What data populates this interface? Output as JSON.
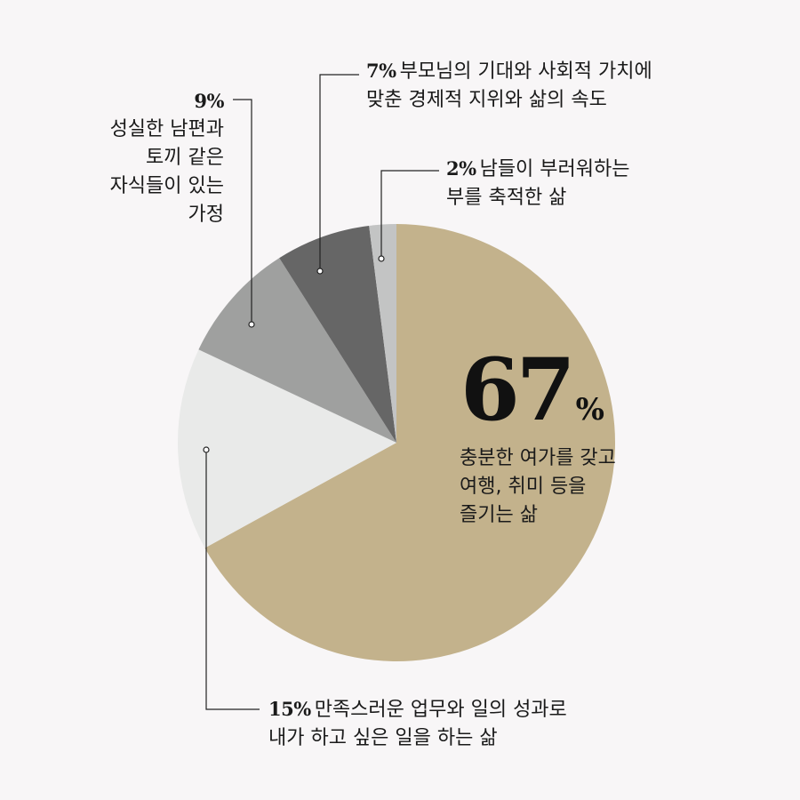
{
  "chart_data": {
    "type": "pie",
    "categories": [
      "충분한 여가를 갖고 여행, 취미 등을 즐기는 삶",
      "만족스러운 업무와 일의 성과로 내가 하고 싶은 일을 하는 삶",
      "성실한 남편과 토끼 같은 자식들이 있는 가정",
      "부모님의 기대와 사회적 가치에 맞춘 경제적 지위와 삶의 속도",
      "남들이 부러워하는 부를 축적한 삶"
    ],
    "values": [
      67,
      15,
      9,
      7,
      2
    ],
    "colors": [
      "#c3b28c",
      "#e9eae9",
      "#9fa09f",
      "#666666",
      "#c3c4c4"
    ],
    "labels": [
      {
        "pct": "67",
        "pct_sign": "%",
        "lines": [
          "충분한 여가를 갖고",
          "여행, 취미 등을",
          "즐기는 삶"
        ]
      },
      {
        "pct": "15%",
        "lines": [
          "만족스러운 업무와 일의 성과로",
          "내가 하고 싶은 일을 하는 삶"
        ]
      },
      {
        "pct": "9%",
        "lines": [
          "성실한 남편과",
          "토끼 같은",
          "자식들이 있는",
          "가정"
        ]
      },
      {
        "pct": "7%",
        "lines": [
          "부모님의 기대와 사회적 가치에",
          "맞춘 경제적 지위와 삶의 속도"
        ]
      },
      {
        "pct": "2%",
        "lines": [
          "남들이 부러워하는",
          "부를 축적한 삶"
        ]
      }
    ]
  }
}
